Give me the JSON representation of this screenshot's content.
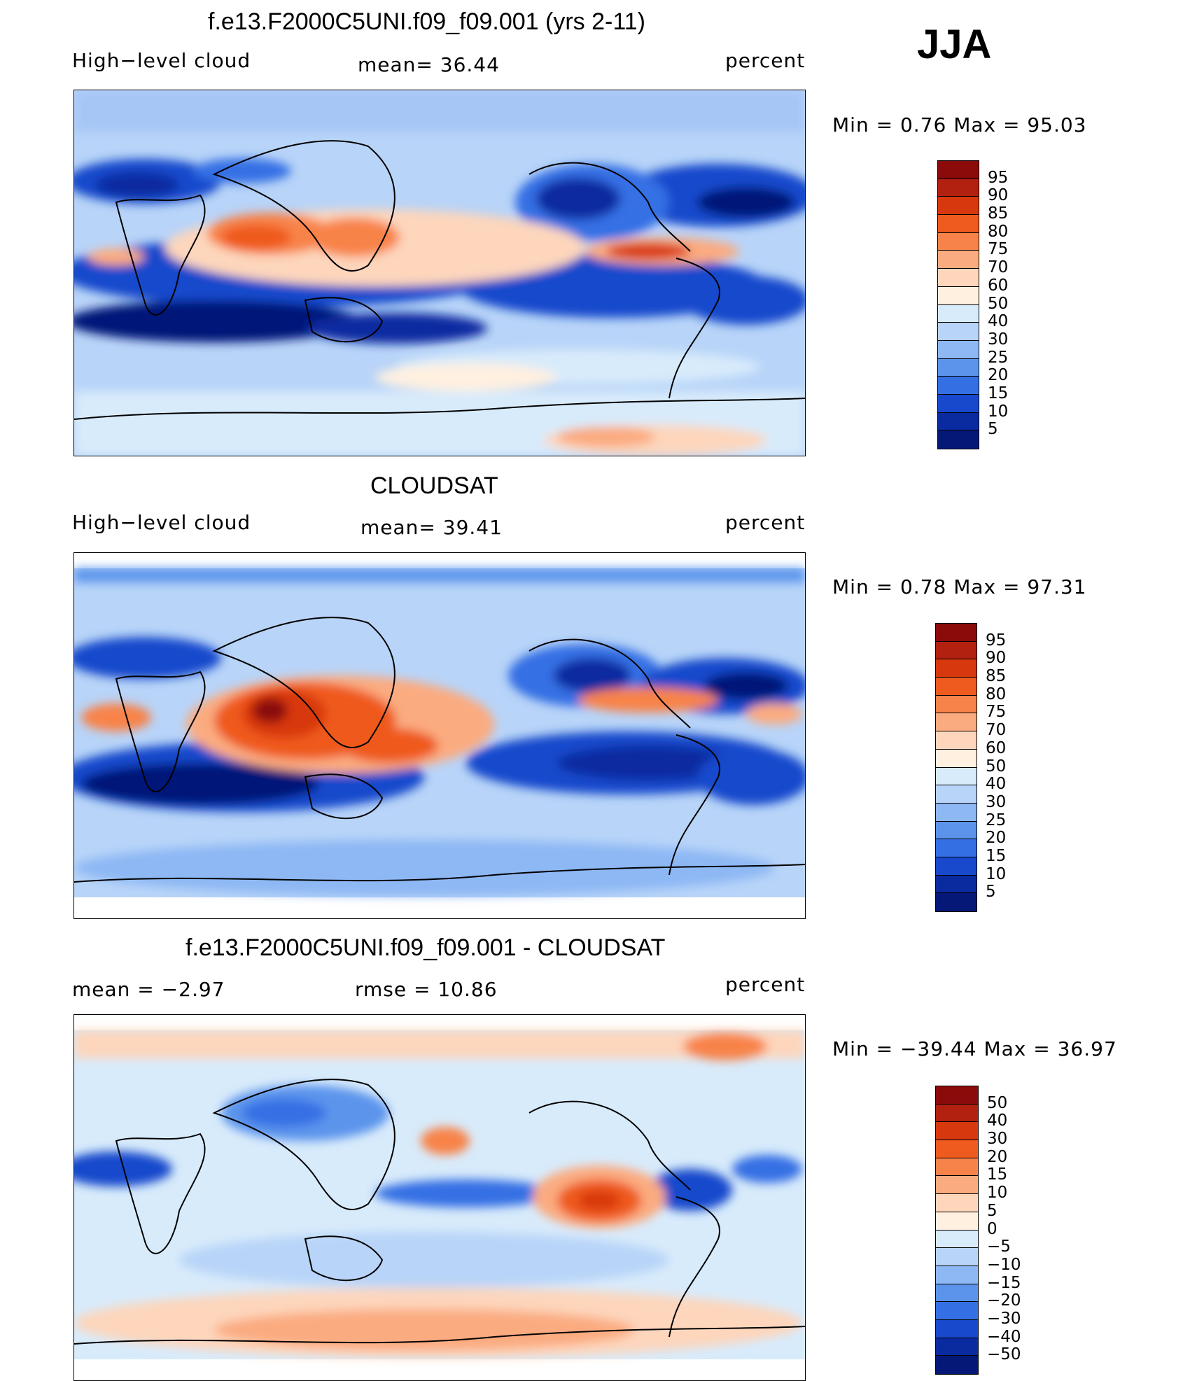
{
  "season": "JJA",
  "panels": [
    {
      "title": "f.e13.F2000C5UNI.f09_f09.001 (yrs 2-11)",
      "left_label": "High−level cloud",
      "center_label": "mean=   36.44",
      "right_label": "percent",
      "minmax": "Min  =     0.76  Max  =     95.03",
      "colorbar": {
        "levels": [
          "95",
          "90",
          "85",
          "80",
          "75",
          "70",
          "60",
          "50",
          "40",
          "30",
          "25",
          "20",
          "15",
          "10",
          "5"
        ],
        "colors": [
          "#8b0a0a",
          "#b22010",
          "#d8380e",
          "#ef5a1e",
          "#f8834a",
          "#fbab80",
          "#fdd6bc",
          "#fff0e0",
          "#d8ebfb",
          "#b8d4f8",
          "#8db8f4",
          "#5c94ec",
          "#3470e4",
          "#1848cc",
          "#0a2aa0",
          "#051878"
        ]
      },
      "chart_data": {
        "type": "heatmap",
        "variable": "High-level cloud",
        "units": "percent",
        "mean": 36.44,
        "min": 0.76,
        "max": 95.03,
        "contour_levels": [
          5,
          10,
          15,
          20,
          25,
          30,
          40,
          50,
          60,
          70,
          75,
          80,
          85,
          90,
          95
        ]
      }
    },
    {
      "title": "CLOUDSAT",
      "left_label": "High−level cloud",
      "center_label": "mean=   39.41",
      "right_label": "percent",
      "minmax": "Min  =     0.78  Max  =     97.31",
      "colorbar": {
        "levels": [
          "95",
          "90",
          "85",
          "80",
          "75",
          "70",
          "60",
          "50",
          "40",
          "30",
          "25",
          "20",
          "15",
          "10",
          "5"
        ],
        "colors": [
          "#8b0a0a",
          "#b22010",
          "#d8380e",
          "#ef5a1e",
          "#f8834a",
          "#fbab80",
          "#fdd6bc",
          "#fff0e0",
          "#d8ebfb",
          "#b8d4f8",
          "#8db8f4",
          "#5c94ec",
          "#3470e4",
          "#1848cc",
          "#0a2aa0",
          "#051878"
        ]
      },
      "chart_data": {
        "type": "heatmap",
        "variable": "High-level cloud",
        "units": "percent",
        "mean": 39.41,
        "min": 0.78,
        "max": 97.31,
        "contour_levels": [
          5,
          10,
          15,
          20,
          25,
          30,
          40,
          50,
          60,
          70,
          75,
          80,
          85,
          90,
          95
        ]
      }
    },
    {
      "title": "f.e13.F2000C5UNI.f09_f09.001 - CLOUDSAT",
      "left_label": "mean  =    −2.97",
      "center_label": "rmse  =    10.86",
      "right_label": "percent",
      "minmax": "Min  = −39.44  Max  =     36.97",
      "colorbar": {
        "levels": [
          "50",
          "40",
          "30",
          "20",
          "15",
          "10",
          "5",
          "0",
          "−5",
          "−10",
          "−15",
          "−20",
          "−30",
          "−40",
          "−50"
        ],
        "colors": [
          "#8b0a0a",
          "#b22010",
          "#d8380e",
          "#ef5a1e",
          "#f8834a",
          "#fbab80",
          "#fdd6bc",
          "#fff0e0",
          "#d8ebfb",
          "#b8d4f8",
          "#8db8f4",
          "#5c94ec",
          "#3470e4",
          "#1848cc",
          "#0a2aa0",
          "#051878"
        ]
      },
      "chart_data": {
        "type": "heatmap",
        "variable": "High-level cloud difference",
        "units": "percent",
        "mean": -2.97,
        "rmse": 10.86,
        "min": -39.44,
        "max": 36.97,
        "contour_levels": [
          -50,
          -40,
          -30,
          -20,
          -15,
          -10,
          -5,
          0,
          5,
          10,
          15,
          20,
          30,
          40,
          50
        ]
      }
    }
  ]
}
